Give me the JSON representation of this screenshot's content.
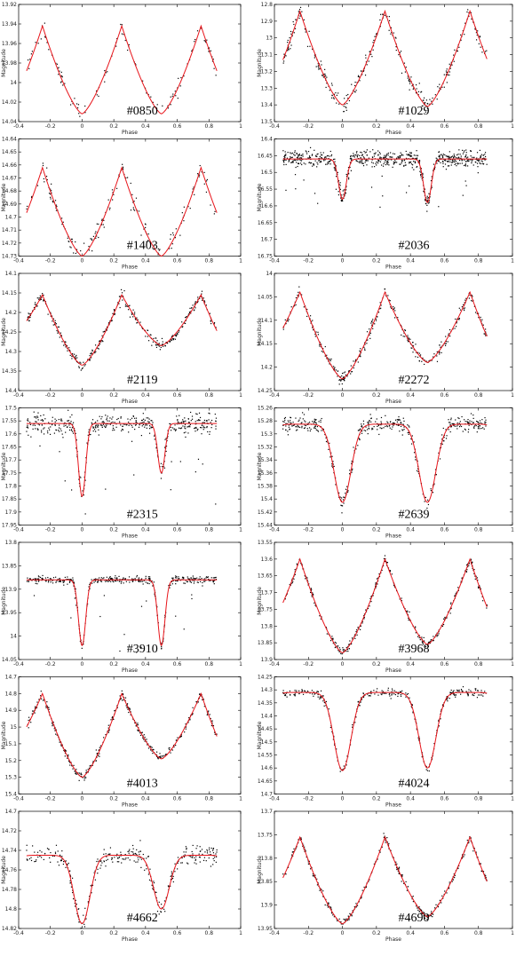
{
  "figure": {
    "background": "#ffffff",
    "fit_color": "#e8141a",
    "point_color": "#000000",
    "panels": [
      {
        "id": "#0850",
        "ylim": [
          13.92,
          14.04
        ],
        "yticks": [
          13.92,
          13.94,
          13.96,
          13.98,
          14,
          14.02,
          14.04
        ],
        "max_mag": 13.942,
        "min1_mag": 14.032,
        "min2_mag": 14.032,
        "shape": "wide",
        "scatter": 0.004,
        "n_points": 110,
        "label_pos": "mid"
      },
      {
        "id": "#1029",
        "ylim": [
          12.8,
          13.5
        ],
        "yticks": [
          12.8,
          12.9,
          13,
          13.1,
          13.2,
          13.3,
          13.4,
          13.5
        ],
        "max_mag": 12.84,
        "min1_mag": 13.4,
        "min2_mag": 13.41,
        "shape": "wide",
        "scatter": 0.025,
        "n_points": 300,
        "label_pos": "right"
      },
      {
        "id": "#1403",
        "ylim": [
          14.64,
          14.73
        ],
        "yticks": [
          14.64,
          14.65,
          14.66,
          14.67,
          14.68,
          14.69,
          14.7,
          14.71,
          14.72,
          14.73
        ],
        "max_mag": 14.662,
        "min1_mag": 14.73,
        "min2_mag": 14.73,
        "shape": "wide",
        "scatter": 0.004,
        "n_points": 170,
        "label_pos": "mid"
      },
      {
        "id": "#2036",
        "ylim": [
          16.4,
          16.75
        ],
        "yticks": [
          16.4,
          16.45,
          16.5,
          16.55,
          16.6,
          16.65,
          16.7,
          16.75
        ],
        "max_mag": 16.46,
        "min1_mag": 16.58,
        "min2_mag": 16.59,
        "shape": "narrow",
        "scatter": 0.012,
        "n_points": 700,
        "label_pos": "right"
      },
      {
        "id": "#2119",
        "ylim": [
          14.1,
          14.4
        ],
        "yticks": [
          14.1,
          14.15,
          14.2,
          14.25,
          14.3,
          14.35,
          14.4
        ],
        "max_mag": 14.155,
        "min1_mag": 14.335,
        "min2_mag": 14.285,
        "shape": "wide",
        "scatter": 0.007,
        "n_points": 320,
        "label_pos": "mid"
      },
      {
        "id": "#2272",
        "ylim": [
          14.0,
          14.25
        ],
        "yticks": [
          14,
          14.05,
          14.1,
          14.15,
          14.2,
          14.25
        ],
        "max_mag": 14.04,
        "min1_mag": 14.225,
        "min2_mag": 14.19,
        "shape": "wide",
        "scatter": 0.006,
        "n_points": 320,
        "label_pos": "right"
      },
      {
        "id": "#2315",
        "ylim": [
          17.5,
          17.95
        ],
        "yticks": [
          17.5,
          17.55,
          17.6,
          17.65,
          17.7,
          17.75,
          17.8,
          17.85,
          17.9,
          17.95
        ],
        "max_mag": 17.56,
        "min1_mag": 17.84,
        "min2_mag": 17.75,
        "shape": "narrow",
        "scatter": 0.018,
        "n_points": 450,
        "label_pos": "mid"
      },
      {
        "id": "#2639",
        "ylim": [
          15.26,
          15.44
        ],
        "yticks": [
          15.26,
          15.28,
          15.3,
          15.32,
          15.34,
          15.36,
          15.38,
          15.4,
          15.42,
          15.44
        ],
        "max_mag": 15.285,
        "min1_mag": 15.405,
        "min2_mag": 15.405,
        "shape": "medium",
        "scatter": 0.006,
        "n_points": 420,
        "label_pos": "right"
      },
      {
        "id": "#3910",
        "ylim": [
          13.8,
          14.05
        ],
        "yticks": [
          13.8,
          13.85,
          13.9,
          13.95,
          14,
          14.05
        ],
        "max_mag": 13.88,
        "min1_mag": 14.02,
        "min2_mag": 14.02,
        "shape": "narrow",
        "scatter": 0.004,
        "n_points": 420,
        "label_pos": "mid"
      },
      {
        "id": "#3968",
        "ylim": [
          13.55,
          13.9
        ],
        "yticks": [
          13.55,
          13.6,
          13.65,
          13.7,
          13.75,
          13.8,
          13.85,
          13.9
        ],
        "max_mag": 13.6,
        "min1_mag": 13.88,
        "min2_mag": 13.855,
        "shape": "wide",
        "scatter": 0.006,
        "n_points": 320,
        "label_pos": "right"
      },
      {
        "id": "#4013",
        "ylim": [
          14.7,
          15.4
        ],
        "yticks": [
          14.7,
          14.8,
          14.9,
          15,
          15.1,
          15.2,
          15.3,
          15.4
        ],
        "max_mag": 14.8,
        "min1_mag": 15.3,
        "min2_mag": 15.19,
        "shape": "wide",
        "scatter": 0.012,
        "n_points": 320,
        "label_pos": "mid"
      },
      {
        "id": "#4024",
        "ylim": [
          14.25,
          14.7
        ],
        "yticks": [
          14.25,
          14.3,
          14.35,
          14.4,
          14.45,
          14.5,
          14.55,
          14.6,
          14.65,
          14.7
        ],
        "max_mag": 14.31,
        "min1_mag": 14.61,
        "min2_mag": 14.6,
        "shape": "medium",
        "scatter": 0.008,
        "n_points": 320,
        "label_pos": "right"
      },
      {
        "id": "#4662",
        "ylim": [
          14.7,
          14.82
        ],
        "yticks": [
          14.7,
          14.72,
          14.74,
          14.76,
          14.78,
          14.8,
          14.82
        ],
        "max_mag": 14.745,
        "min1_mag": 14.815,
        "min2_mag": 14.8,
        "shape": "medium",
        "scatter": 0.005,
        "n_points": 320,
        "label_pos": "mid"
      },
      {
        "id": "#4690",
        "ylim": [
          13.7,
          13.95
        ],
        "yticks": [
          13.7,
          13.75,
          13.8,
          13.85,
          13.9,
          13.95
        ],
        "max_mag": 13.755,
        "min1_mag": 13.94,
        "min2_mag": 13.925,
        "shape": "wide",
        "scatter": 0.004,
        "n_points": 320,
        "label_pos": "right"
      }
    ]
  },
  "chart_data": [
    {
      "type": "scatter",
      "title": "",
      "label": "#0850",
      "xlabel": "Phase",
      "ylabel": "Magnitude",
      "xlim": [
        -0.4,
        1
      ],
      "ylim": [
        13.92,
        14.04
      ],
      "y_inverted": true,
      "x": [
        -0.25,
        0,
        0.25,
        0.5,
        0.75
      ],
      "y": [
        13.942,
        14.032,
        13.942,
        14.032,
        13.942
      ]
    },
    {
      "type": "scatter",
      "title": "",
      "label": "#1029",
      "xlabel": "Phase",
      "ylabel": "Magnitude",
      "xlim": [
        -0.4,
        1
      ],
      "ylim": [
        12.8,
        13.5
      ],
      "y_inverted": true,
      "x": [
        -0.25,
        0,
        0.25,
        0.5,
        0.75
      ],
      "y": [
        12.84,
        13.4,
        12.84,
        13.41,
        12.84
      ]
    },
    {
      "type": "scatter",
      "title": "",
      "label": "#1403",
      "xlabel": "Phase",
      "ylabel": "Magnitude",
      "xlim": [
        -0.4,
        1
      ],
      "ylim": [
        14.64,
        14.73
      ],
      "y_inverted": true,
      "x": [
        -0.25,
        0,
        0.25,
        0.5,
        0.75
      ],
      "y": [
        14.662,
        14.73,
        14.662,
        14.73,
        14.662
      ]
    },
    {
      "type": "scatter",
      "title": "",
      "label": "#2036",
      "xlabel": "Phase",
      "ylabel": "Magnitude",
      "xlim": [
        -0.4,
        1
      ],
      "ylim": [
        16.4,
        16.75
      ],
      "y_inverted": true,
      "x": [
        -0.25,
        0,
        0.25,
        0.5,
        0.75
      ],
      "y": [
        16.46,
        16.58,
        16.46,
        16.59,
        16.46
      ]
    },
    {
      "type": "scatter",
      "title": "",
      "label": "#2119",
      "xlabel": "Phase",
      "ylabel": "Magnitude",
      "xlim": [
        -0.4,
        1
      ],
      "ylim": [
        14.1,
        14.4
      ],
      "y_inverted": true,
      "x": [
        -0.25,
        0,
        0.25,
        0.5,
        0.75
      ],
      "y": [
        14.155,
        14.335,
        14.155,
        14.285,
        14.155
      ]
    },
    {
      "type": "scatter",
      "title": "",
      "label": "#2272",
      "xlabel": "Phase",
      "ylabel": "Magnitude",
      "xlim": [
        -0.4,
        1
      ],
      "ylim": [
        14.0,
        14.25
      ],
      "y_inverted": true,
      "x": [
        -0.25,
        0,
        0.25,
        0.5,
        0.75
      ],
      "y": [
        14.04,
        14.225,
        14.04,
        14.19,
        14.04
      ]
    },
    {
      "type": "scatter",
      "title": "",
      "label": "#2315",
      "xlabel": "Phase",
      "ylabel": "Magnitude",
      "xlim": [
        -0.4,
        1
      ],
      "ylim": [
        17.5,
        17.95
      ],
      "y_inverted": true,
      "x": [
        -0.25,
        0,
        0.25,
        0.5,
        0.75
      ],
      "y": [
        17.56,
        17.84,
        17.56,
        17.75,
        17.56
      ]
    },
    {
      "type": "scatter",
      "title": "",
      "label": "#2639",
      "xlabel": "Phase",
      "ylabel": "Magnitude",
      "xlim": [
        -0.4,
        1
      ],
      "ylim": [
        15.26,
        15.44
      ],
      "y_inverted": true,
      "x": [
        -0.25,
        0,
        0.25,
        0.5,
        0.75
      ],
      "y": [
        15.285,
        15.405,
        15.285,
        15.405,
        15.285
      ]
    },
    {
      "type": "scatter",
      "title": "",
      "label": "#3910",
      "xlabel": "Phase",
      "ylabel": "Magnitude",
      "xlim": [
        -0.4,
        1
      ],
      "ylim": [
        13.8,
        14.05
      ],
      "y_inverted": true,
      "x": [
        -0.25,
        0,
        0.25,
        0.5,
        0.75
      ],
      "y": [
        13.88,
        14.02,
        13.88,
        14.02,
        13.88
      ]
    },
    {
      "type": "scatter",
      "title": "",
      "label": "#3968",
      "xlabel": "Phase",
      "ylabel": "Magnitude",
      "xlim": [
        -0.4,
        1
      ],
      "ylim": [
        13.55,
        13.9
      ],
      "y_inverted": true,
      "x": [
        -0.25,
        0,
        0.25,
        0.5,
        0.75
      ],
      "y": [
        13.6,
        13.88,
        13.6,
        13.855,
        13.6
      ]
    },
    {
      "type": "scatter",
      "title": "",
      "label": "#4013",
      "xlabel": "Phase",
      "ylabel": "Magnitude",
      "xlim": [
        -0.4,
        1
      ],
      "ylim": [
        14.7,
        15.4
      ],
      "y_inverted": true,
      "x": [
        -0.25,
        0,
        0.25,
        0.5,
        0.75
      ],
      "y": [
        14.8,
        15.3,
        14.8,
        15.19,
        14.8
      ]
    },
    {
      "type": "scatter",
      "title": "",
      "label": "#4024",
      "xlabel": "Phase",
      "ylabel": "Magnitude",
      "xlim": [
        -0.4,
        1
      ],
      "ylim": [
        14.25,
        14.7
      ],
      "y_inverted": true,
      "x": [
        -0.25,
        0,
        0.25,
        0.5,
        0.75
      ],
      "y": [
        14.31,
        14.61,
        14.31,
        14.6,
        14.31
      ]
    },
    {
      "type": "scatter",
      "title": "",
      "label": "#4662",
      "xlabel": "Phase",
      "ylabel": "Magnitude",
      "xlim": [
        -0.4,
        1
      ],
      "ylim": [
        14.7,
        14.82
      ],
      "y_inverted": true,
      "x": [
        -0.25,
        0,
        0.25,
        0.5,
        0.75
      ],
      "y": [
        14.745,
        14.815,
        14.745,
        14.8,
        14.745
      ]
    },
    {
      "type": "scatter",
      "title": "",
      "label": "#4690",
      "xlabel": "Phase",
      "ylabel": "Magnitude",
      "xlim": [
        -0.4,
        1
      ],
      "ylim": [
        13.7,
        13.95
      ],
      "y_inverted": true,
      "x": [
        -0.25,
        0,
        0.25,
        0.5,
        0.75
      ],
      "y": [
        13.755,
        13.94,
        13.755,
        13.925,
        13.755
      ]
    }
  ],
  "axes": {
    "xlabel": "Phase",
    "ylabel": "Magnitude",
    "xlim": [
      -0.4,
      1
    ],
    "xticks": [
      "-0.4",
      "-0.2",
      "0",
      "0.2",
      "0.4",
      "0.6",
      "0.8",
      "1"
    ]
  }
}
